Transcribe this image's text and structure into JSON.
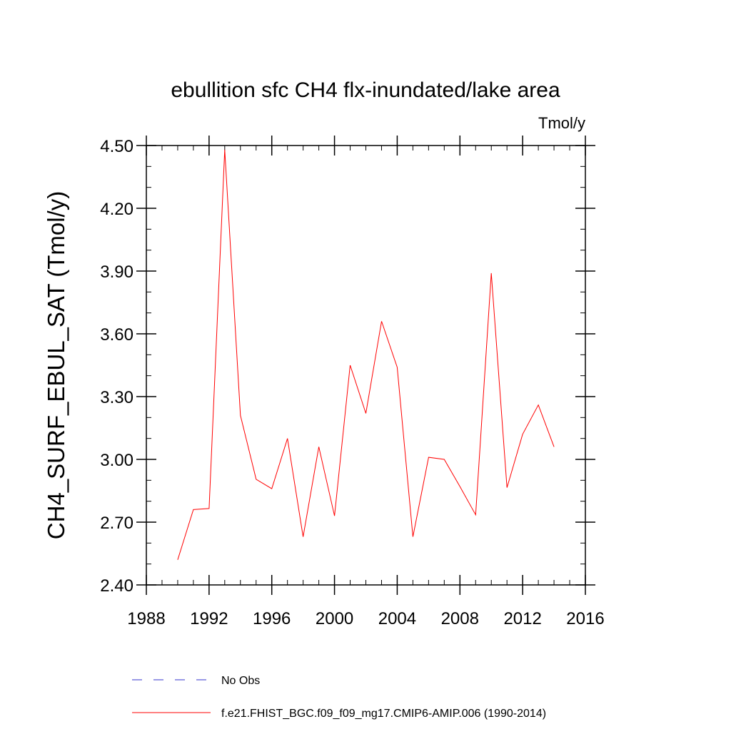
{
  "chart_data": {
    "type": "line",
    "title": "ebullition sfc CH4 flx-inundated/lake area",
    "units": "Tmol/y",
    "xlabel": "",
    "ylabel": "CH4_SURF_EBUL_SAT  (Tmol/y)",
    "xlim": [
      1988,
      2016
    ],
    "ylim": [
      2.4,
      4.5
    ],
    "xticks": [
      1988,
      1992,
      1996,
      2000,
      2004,
      2008,
      2012,
      2016
    ],
    "xtick_labels": [
      "1988",
      "1992",
      "1996",
      "2000",
      "2004",
      "2008",
      "2012",
      "2016"
    ],
    "yticks": [
      2.4,
      2.7,
      3.0,
      3.3,
      3.6,
      3.9,
      4.2,
      4.5
    ],
    "ytick_labels": [
      "2.40",
      "2.70",
      "3.00",
      "3.30",
      "3.60",
      "3.90",
      "4.20",
      "4.50"
    ],
    "grid": false,
    "legend_position": "bottom",
    "series": [
      {
        "name": "f.e21.FHIST_BGC.f09_f09_mg17.CMIP6-AMIP.006 (1990-2014)",
        "color": "#ff0000",
        "dash": "solid",
        "x": [
          1990,
          1991,
          1992,
          1993,
          1994,
          1995,
          1996,
          1997,
          1998,
          1999,
          2000,
          2001,
          2002,
          2003,
          2004,
          2005,
          2006,
          2007,
          2008,
          2009,
          2010,
          2011,
          2012,
          2013,
          2014
        ],
        "values": [
          2.52,
          2.76,
          2.765,
          4.48,
          3.21,
          2.905,
          2.86,
          3.1,
          2.63,
          3.06,
          2.73,
          3.45,
          3.22,
          3.66,
          3.44,
          2.63,
          3.01,
          3.0,
          2.87,
          2.735,
          3.89,
          2.865,
          3.12,
          3.26,
          3.06
        ]
      }
    ],
    "legend": [
      {
        "label": "No Obs",
        "color": "#3333cc",
        "dash": "dashed"
      },
      {
        "label": "f.e21.FHIST_BGC.f09_f09_mg17.CMIP6-AMIP.006 (1990-2014)",
        "color": "#ff0000",
        "dash": "solid"
      }
    ]
  }
}
